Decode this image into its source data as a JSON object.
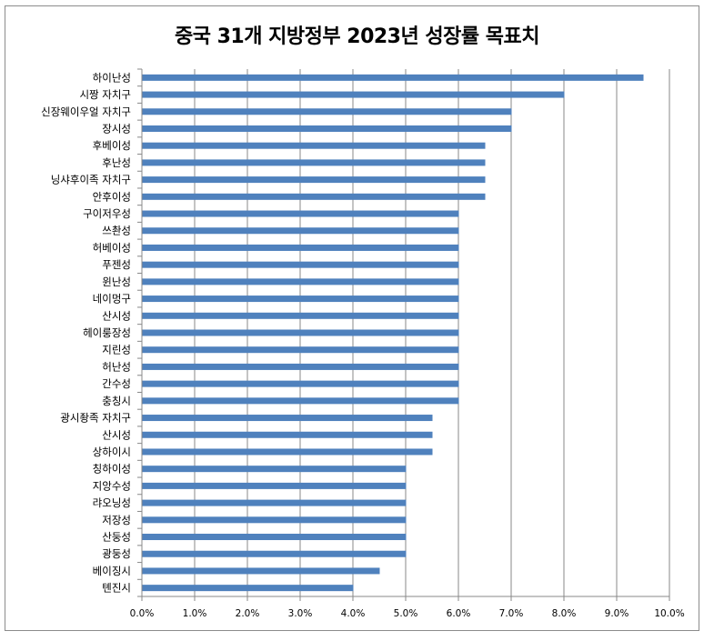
{
  "chart_data": {
    "type": "bar",
    "orientation": "horizontal",
    "title": "중국 31개 지방정부 2023년 성장률 목표치",
    "categories": [
      "하이난성",
      "시짱 자치구",
      "신장웨이우얼 자치구",
      "장시성",
      "후베이성",
      "후난성",
      "닝샤후이족 자치구",
      "안후이성",
      "구이저우성",
      "쓰촨성",
      "허베이성",
      "푸젠성",
      "윈난성",
      "네이멍구",
      "산시성",
      "헤이룽장성",
      "지린성",
      "허난성",
      "간수성",
      "충칭시",
      "광시좡족 자치구",
      "산시성",
      "상하이시",
      "칭하이성",
      "지앙수성",
      "랴오닝성",
      "저장성",
      "산둥성",
      "광둥성",
      "베이징시",
      "톈진시"
    ],
    "values": [
      9.5,
      8.0,
      7.0,
      7.0,
      6.5,
      6.5,
      6.5,
      6.5,
      6.0,
      6.0,
      6.0,
      6.0,
      6.0,
      6.0,
      6.0,
      6.0,
      6.0,
      6.0,
      6.0,
      6.0,
      5.5,
      5.5,
      5.5,
      5.0,
      5.0,
      5.0,
      5.0,
      5.0,
      5.0,
      4.5,
      4.0
    ],
    "xlim": [
      0,
      10
    ],
    "x_ticks": [
      "0.0%",
      "1.0%",
      "2.0%",
      "3.0%",
      "4.0%",
      "5.0%",
      "6.0%",
      "7.0%",
      "8.0%",
      "9.0%",
      "10.0%"
    ],
    "grid": "vertical",
    "bar_color": "#4f81bd"
  }
}
